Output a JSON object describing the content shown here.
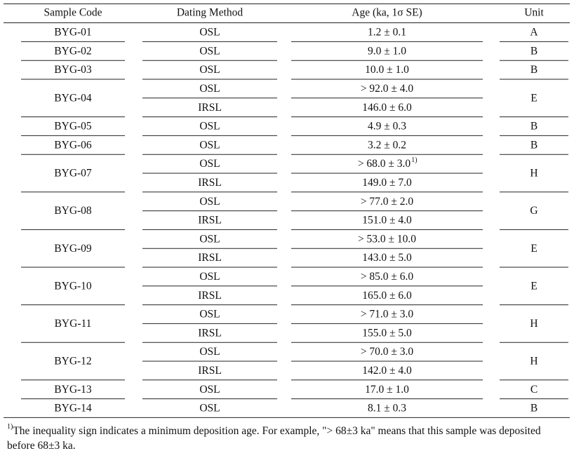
{
  "table": {
    "header": [
      "Sample Code",
      "Dating Method",
      "Age (ka, 1σ SE)",
      "Unit"
    ],
    "rows": [
      {
        "sample": "BYG-01",
        "unit": "A",
        "measurements": [
          {
            "method": "OSL",
            "age": "1.2 ± 0.1"
          }
        ]
      },
      {
        "sample": "BYG-02",
        "unit": "B",
        "measurements": [
          {
            "method": "OSL",
            "age": "9.0 ± 1.0"
          }
        ]
      },
      {
        "sample": "BYG-03",
        "unit": "B",
        "measurements": [
          {
            "method": "OSL",
            "age": "10.0 ± 1.0"
          }
        ]
      },
      {
        "sample": "BYG-04",
        "unit": "E",
        "measurements": [
          {
            "method": "OSL",
            "age": "> 92.0 ± 4.0"
          },
          {
            "method": "IRSL",
            "age": "146.0 ± 6.0"
          }
        ]
      },
      {
        "sample": "BYG-05",
        "unit": "B",
        "measurements": [
          {
            "method": "OSL",
            "age": "4.9 ± 0.3"
          }
        ]
      },
      {
        "sample": "BYG-06",
        "unit": "B",
        "measurements": [
          {
            "method": "OSL",
            "age": "3.2 ± 0.2"
          }
        ]
      },
      {
        "sample": "BYG-07",
        "unit": "H",
        "measurements": [
          {
            "method": "OSL",
            "age": "> 68.0 ± 3.0",
            "note": "1)"
          },
          {
            "method": "IRSL",
            "age": "149.0 ± 7.0"
          }
        ]
      },
      {
        "sample": "BYG-08",
        "unit": "G",
        "measurements": [
          {
            "method": "OSL",
            "age": "> 77.0 ± 2.0"
          },
          {
            "method": "IRSL",
            "age": "151.0 ± 4.0"
          }
        ]
      },
      {
        "sample": "BYG-09",
        "unit": "E",
        "measurements": [
          {
            "method": "OSL",
            "age": "> 53.0 ± 10.0"
          },
          {
            "method": "IRSL",
            "age": "143.0 ± 5.0"
          }
        ]
      },
      {
        "sample": "BYG-10",
        "unit": "E",
        "measurements": [
          {
            "method": "OSL",
            "age": "> 85.0 ± 6.0"
          },
          {
            "method": "IRSL",
            "age": "165.0 ± 6.0"
          }
        ]
      },
      {
        "sample": "BYG-11",
        "unit": "H",
        "measurements": [
          {
            "method": "OSL",
            "age": "> 71.0 ± 3.0"
          },
          {
            "method": "IRSL",
            "age": "155.0 ± 5.0"
          }
        ]
      },
      {
        "sample": "BYG-12",
        "unit": "H",
        "measurements": [
          {
            "method": "OSL",
            "age": "> 70.0 ± 3.0"
          },
          {
            "method": "IRSL",
            "age": "142.0 ± 4.0"
          }
        ]
      },
      {
        "sample": "BYG-13",
        "unit": "C",
        "measurements": [
          {
            "method": "OSL",
            "age": "17.0 ± 1.0"
          }
        ]
      },
      {
        "sample": "BYG-14",
        "unit": "B",
        "measurements": [
          {
            "method": "OSL",
            "age": "8.1 ± 0.3"
          }
        ]
      }
    ],
    "footnote": {
      "marker": "1)",
      "text": "The inequality sign indicates a minimum deposition age. For example, \"> 68±3 ka\" means that this sample was deposited before 68±3 ka."
    }
  }
}
